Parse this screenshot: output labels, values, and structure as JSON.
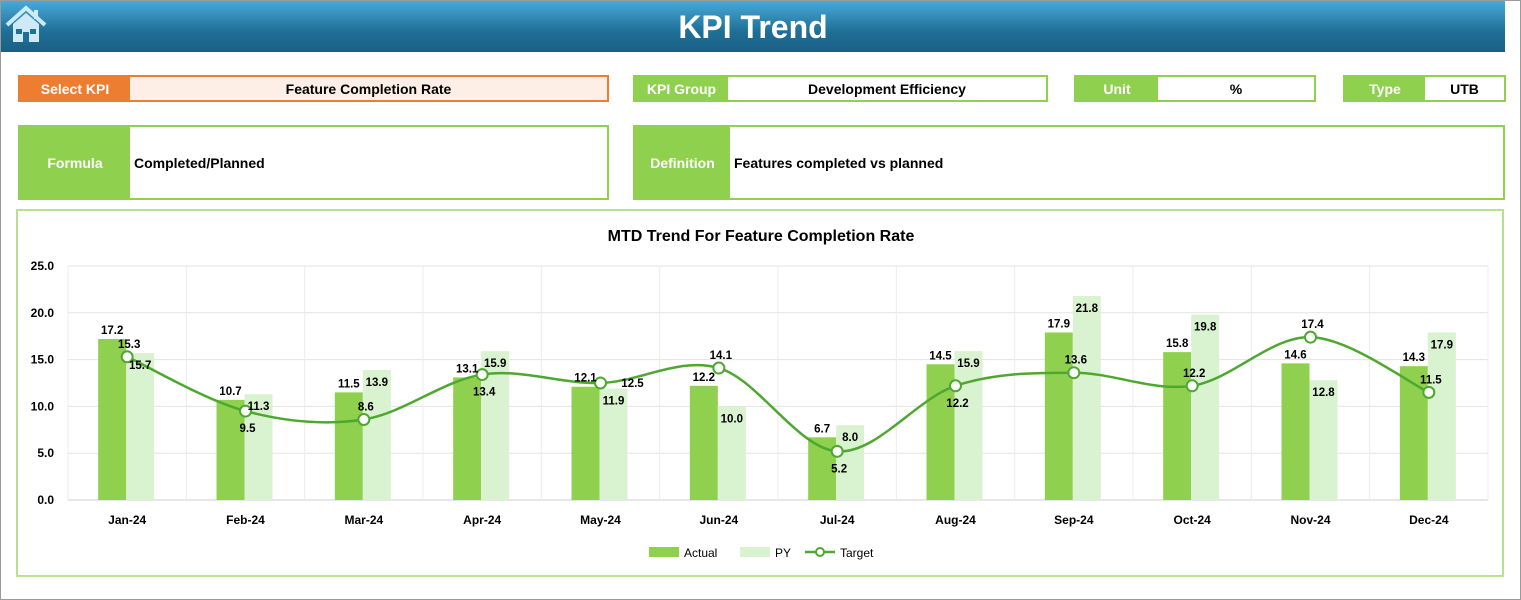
{
  "header": {
    "title": "KPI Trend",
    "home_icon": "home-icon"
  },
  "select_kpi": {
    "label": "Select KPI",
    "value": "Feature Completion Rate"
  },
  "kpi_group": {
    "label": "KPI Group",
    "value": "Development Efficiency"
  },
  "unit": {
    "label": "Unit",
    "value": "%"
  },
  "type": {
    "label": "Type",
    "value": "UTB"
  },
  "formula": {
    "label": "Formula",
    "value": "Completed/Planned"
  },
  "definition": {
    "label": "Definition",
    "value": "Features completed vs planned"
  },
  "colors": {
    "accent_green": "#8fd14f",
    "py_green": "#d9f2d0",
    "target_line": "#4ea72e",
    "select_orange": "#ed7d31",
    "header_blue": "#1f6f97"
  },
  "chart_data": {
    "type": "bar",
    "title": "MTD Trend For Feature Completion Rate",
    "categories": [
      "Jan-24",
      "Feb-24",
      "Mar-24",
      "Apr-24",
      "May-24",
      "Jun-24",
      "Jul-24",
      "Aug-24",
      "Sep-24",
      "Oct-24",
      "Nov-24",
      "Dec-24"
    ],
    "ylim": [
      0,
      25
    ],
    "yticks": [
      "0.0",
      "5.0",
      "10.0",
      "15.0",
      "20.0",
      "25.0"
    ],
    "grid": true,
    "legend": "bottom",
    "series": [
      {
        "name": "Actual",
        "kind": "bar",
        "values": [
          17.2,
          10.7,
          11.5,
          13.1,
          12.1,
          12.2,
          6.7,
          14.5,
          17.9,
          15.8,
          14.6,
          14.3
        ]
      },
      {
        "name": "PY",
        "kind": "bar",
        "values": [
          15.7,
          11.3,
          13.9,
          15.9,
          11.9,
          10.0,
          8.0,
          15.9,
          21.8,
          19.8,
          12.8,
          17.9
        ]
      },
      {
        "name": "Target",
        "kind": "line",
        "values": [
          15.3,
          9.5,
          8.6,
          13.4,
          12.5,
          14.1,
          5.2,
          12.2,
          13.6,
          12.2,
          17.4,
          11.5
        ]
      }
    ]
  }
}
